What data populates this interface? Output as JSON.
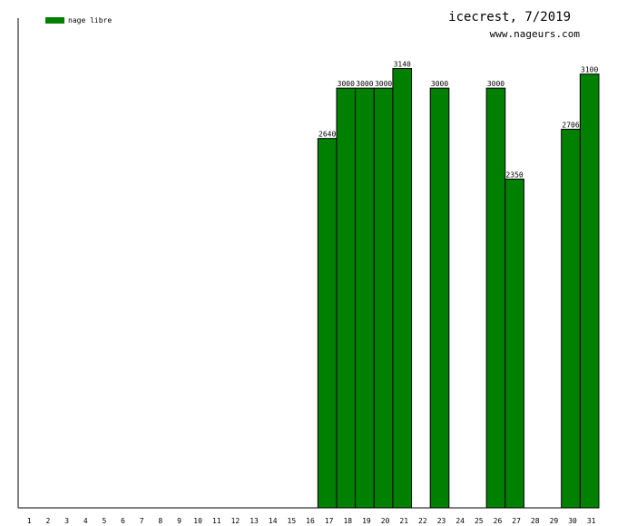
{
  "chart_data": {
    "type": "bar",
    "title": "icecrest, 7/2019",
    "subtitle": "www.nageurs.com",
    "xlabel": "",
    "ylabel": "",
    "ylim": [
      0,
      3500
    ],
    "grid": false,
    "legend_position": "top-left",
    "colors": {
      "bar": "#008000",
      "bar_edge": "#000000",
      "axis": "#000000"
    },
    "categories": [
      "1",
      "2",
      "3",
      "4",
      "5",
      "6",
      "7",
      "8",
      "9",
      "10",
      "11",
      "12",
      "13",
      "14",
      "15",
      "16",
      "17",
      "18",
      "19",
      "20",
      "21",
      "22",
      "23",
      "24",
      "25",
      "26",
      "27",
      "28",
      "29",
      "30",
      "31"
    ],
    "series": [
      {
        "name": "nage libre",
        "values": [
          null,
          null,
          null,
          null,
          null,
          null,
          null,
          null,
          null,
          null,
          null,
          null,
          null,
          null,
          null,
          null,
          2640,
          3000,
          3000,
          3000,
          3140,
          null,
          3000,
          null,
          null,
          3000,
          2350,
          null,
          null,
          2706,
          3100
        ]
      }
    ]
  }
}
